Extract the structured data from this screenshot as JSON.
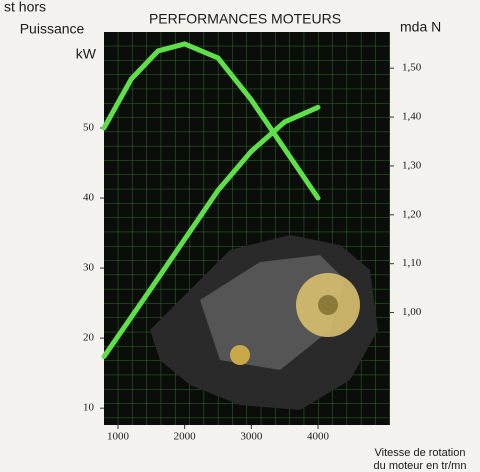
{
  "corner_text": "st hors",
  "chart_data": {
    "type": "line",
    "title": "PERFORMANCES MOTEURS",
    "y_label": "Puissance",
    "y_unit": "kW",
    "y2_label": "mda N",
    "x_label": [
      "Vitesse de rotation",
      "du moteur en tr/mn"
    ],
    "xlim": [
      790,
      5080
    ],
    "xticks": [
      1000,
      2000,
      3000,
      4000
    ],
    "ylim": [
      7.6,
      63.7
    ],
    "yticks": [
      10,
      20,
      30,
      40,
      50
    ],
    "y2lim": [
      0.77,
      1.574
    ],
    "y2ticks": [
      {
        "value": 1.0,
        "label": "1,00"
      },
      {
        "value": 1.1,
        "label": "1,10"
      },
      {
        "value": 1.2,
        "label": "1,20"
      },
      {
        "value": 1.3,
        "label": "1,30"
      },
      {
        "value": 1.4,
        "label": "1,40"
      },
      {
        "value": 1.5,
        "label": "1,50"
      }
    ],
    "grid": true,
    "series": [
      {
        "color": "#5fe04a",
        "x": [
          790,
          1200,
          1600,
          2000,
          2500,
          3000,
          3500,
          4000
        ],
        "values": [
          50,
          57,
          61,
          62,
          60,
          54,
          47,
          40
        ]
      },
      {
        "color": "#5fe04a",
        "axis": "y2",
        "x": [
          790,
          1500,
          2000,
          2500,
          3000,
          3500,
          4000
        ],
        "values": [
          0.91,
          1.05,
          1.15,
          1.25,
          1.33,
          1.39,
          1.42
        ]
      }
    ]
  }
}
